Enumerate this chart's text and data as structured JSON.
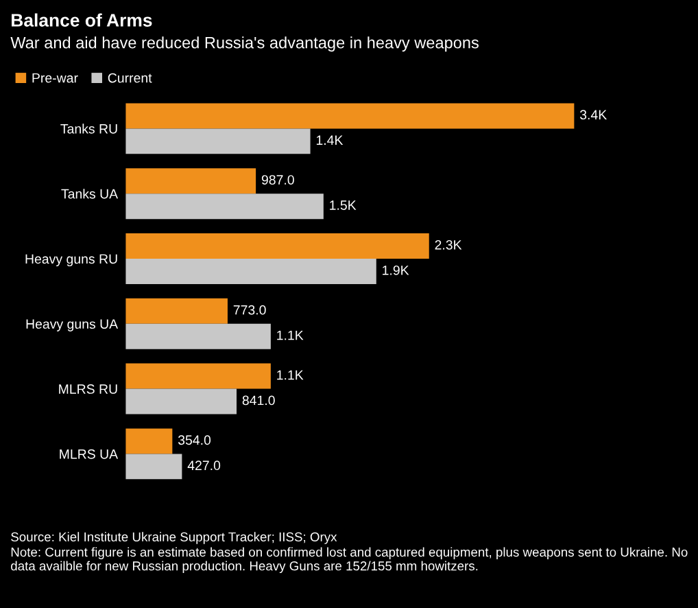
{
  "chart_data": {
    "type": "bar",
    "orientation": "horizontal",
    "title": "Balance of Arms",
    "subtitle": "War and aid have reduced Russia's advantage in heavy weapons",
    "categories": [
      "Tanks RU",
      "Tanks UA",
      "Heavy guns RU",
      "Heavy guns UA",
      "MLRS RU",
      "MLRS UA"
    ],
    "series": [
      {
        "name": "Pre-war",
        "color": "#f0901c",
        "values": [
          3400,
          987,
          2300,
          773,
          1100,
          354
        ],
        "value_labels": [
          "3.4K",
          "987.0",
          "2.3K",
          "773.0",
          "1.1K",
          "354.0"
        ]
      },
      {
        "name": "Current",
        "color": "#c8c8c8",
        "values": [
          1400,
          1500,
          1900,
          1100,
          841,
          427
        ],
        "value_labels": [
          "1.4K",
          "1.5K",
          "1.9K",
          "1.1K",
          "841.0",
          "427.0"
        ]
      }
    ],
    "legend": "top left",
    "grid": false,
    "annotations": [
      "Source: Kiel Institute Ukraine Support Tracker; IISS; Oryx",
      "Note: Current figure is an estimate based on confirmed lost and captured equipment, plus weapons sent to Ukraine. No data availble for new Russian production. Heavy Guns are 152/155 mm howitzers."
    ]
  }
}
